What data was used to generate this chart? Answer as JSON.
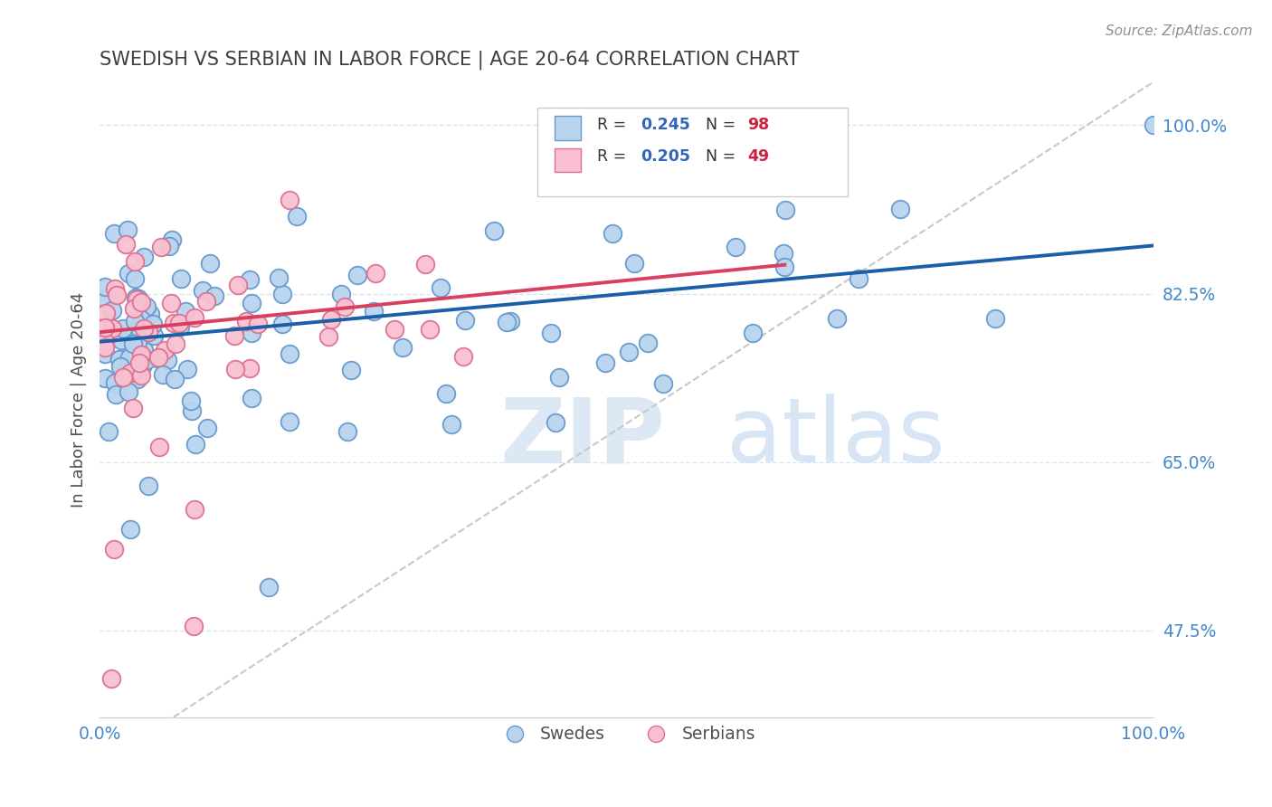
{
  "title": "SWEDISH VS SERBIAN IN LABOR FORCE | AGE 20-64 CORRELATION CHART",
  "source_text": "Source: ZipAtlas.com",
  "ylabel": "In Labor Force | Age 20-64",
  "xlim": [
    0.0,
    1.0
  ],
  "ylim": [
    0.385,
    1.045
  ],
  "yticks": [
    0.475,
    0.65,
    0.825,
    1.0
  ],
  "ytick_labels": [
    "47.5%",
    "65.0%",
    "82.5%",
    "100.0%"
  ],
  "xtick_labels": [
    "0.0%",
    "100.0%"
  ],
  "swedes_color": "#b8d4ee",
  "swedes_edge": "#6699cc",
  "serbians_color": "#f8c0d0",
  "serbians_edge": "#dd7090",
  "trend_swedes_color": "#1a5fa8",
  "trend_serbians_color": "#d94060",
  "ref_line_color": "#c8c8c8",
  "grid_color": "#d8e4f0",
  "title_color": "#404040",
  "axis_label_color": "#505050",
  "tick_color": "#4488cc",
  "watermark_color": "#dce8f4",
  "legend_R_color": "#3366bb",
  "legend_N_color": "#cc2244",
  "R_swedes": 0.245,
  "N_swedes": 98,
  "R_serbians": 0.205,
  "N_serbians": 49,
  "trend_sw_x0": 0.0,
  "trend_sw_y0": 0.775,
  "trend_sw_x1": 1.0,
  "trend_sw_y1": 0.875,
  "trend_sr_x0": 0.0,
  "trend_sr_y0": 0.785,
  "trend_sr_x1": 0.65,
  "trend_sr_y1": 0.855,
  "ref_line_x0": 0.07,
  "ref_line_y0": 0.385,
  "ref_line_x1": 1.0,
  "ref_line_y1": 1.045
}
